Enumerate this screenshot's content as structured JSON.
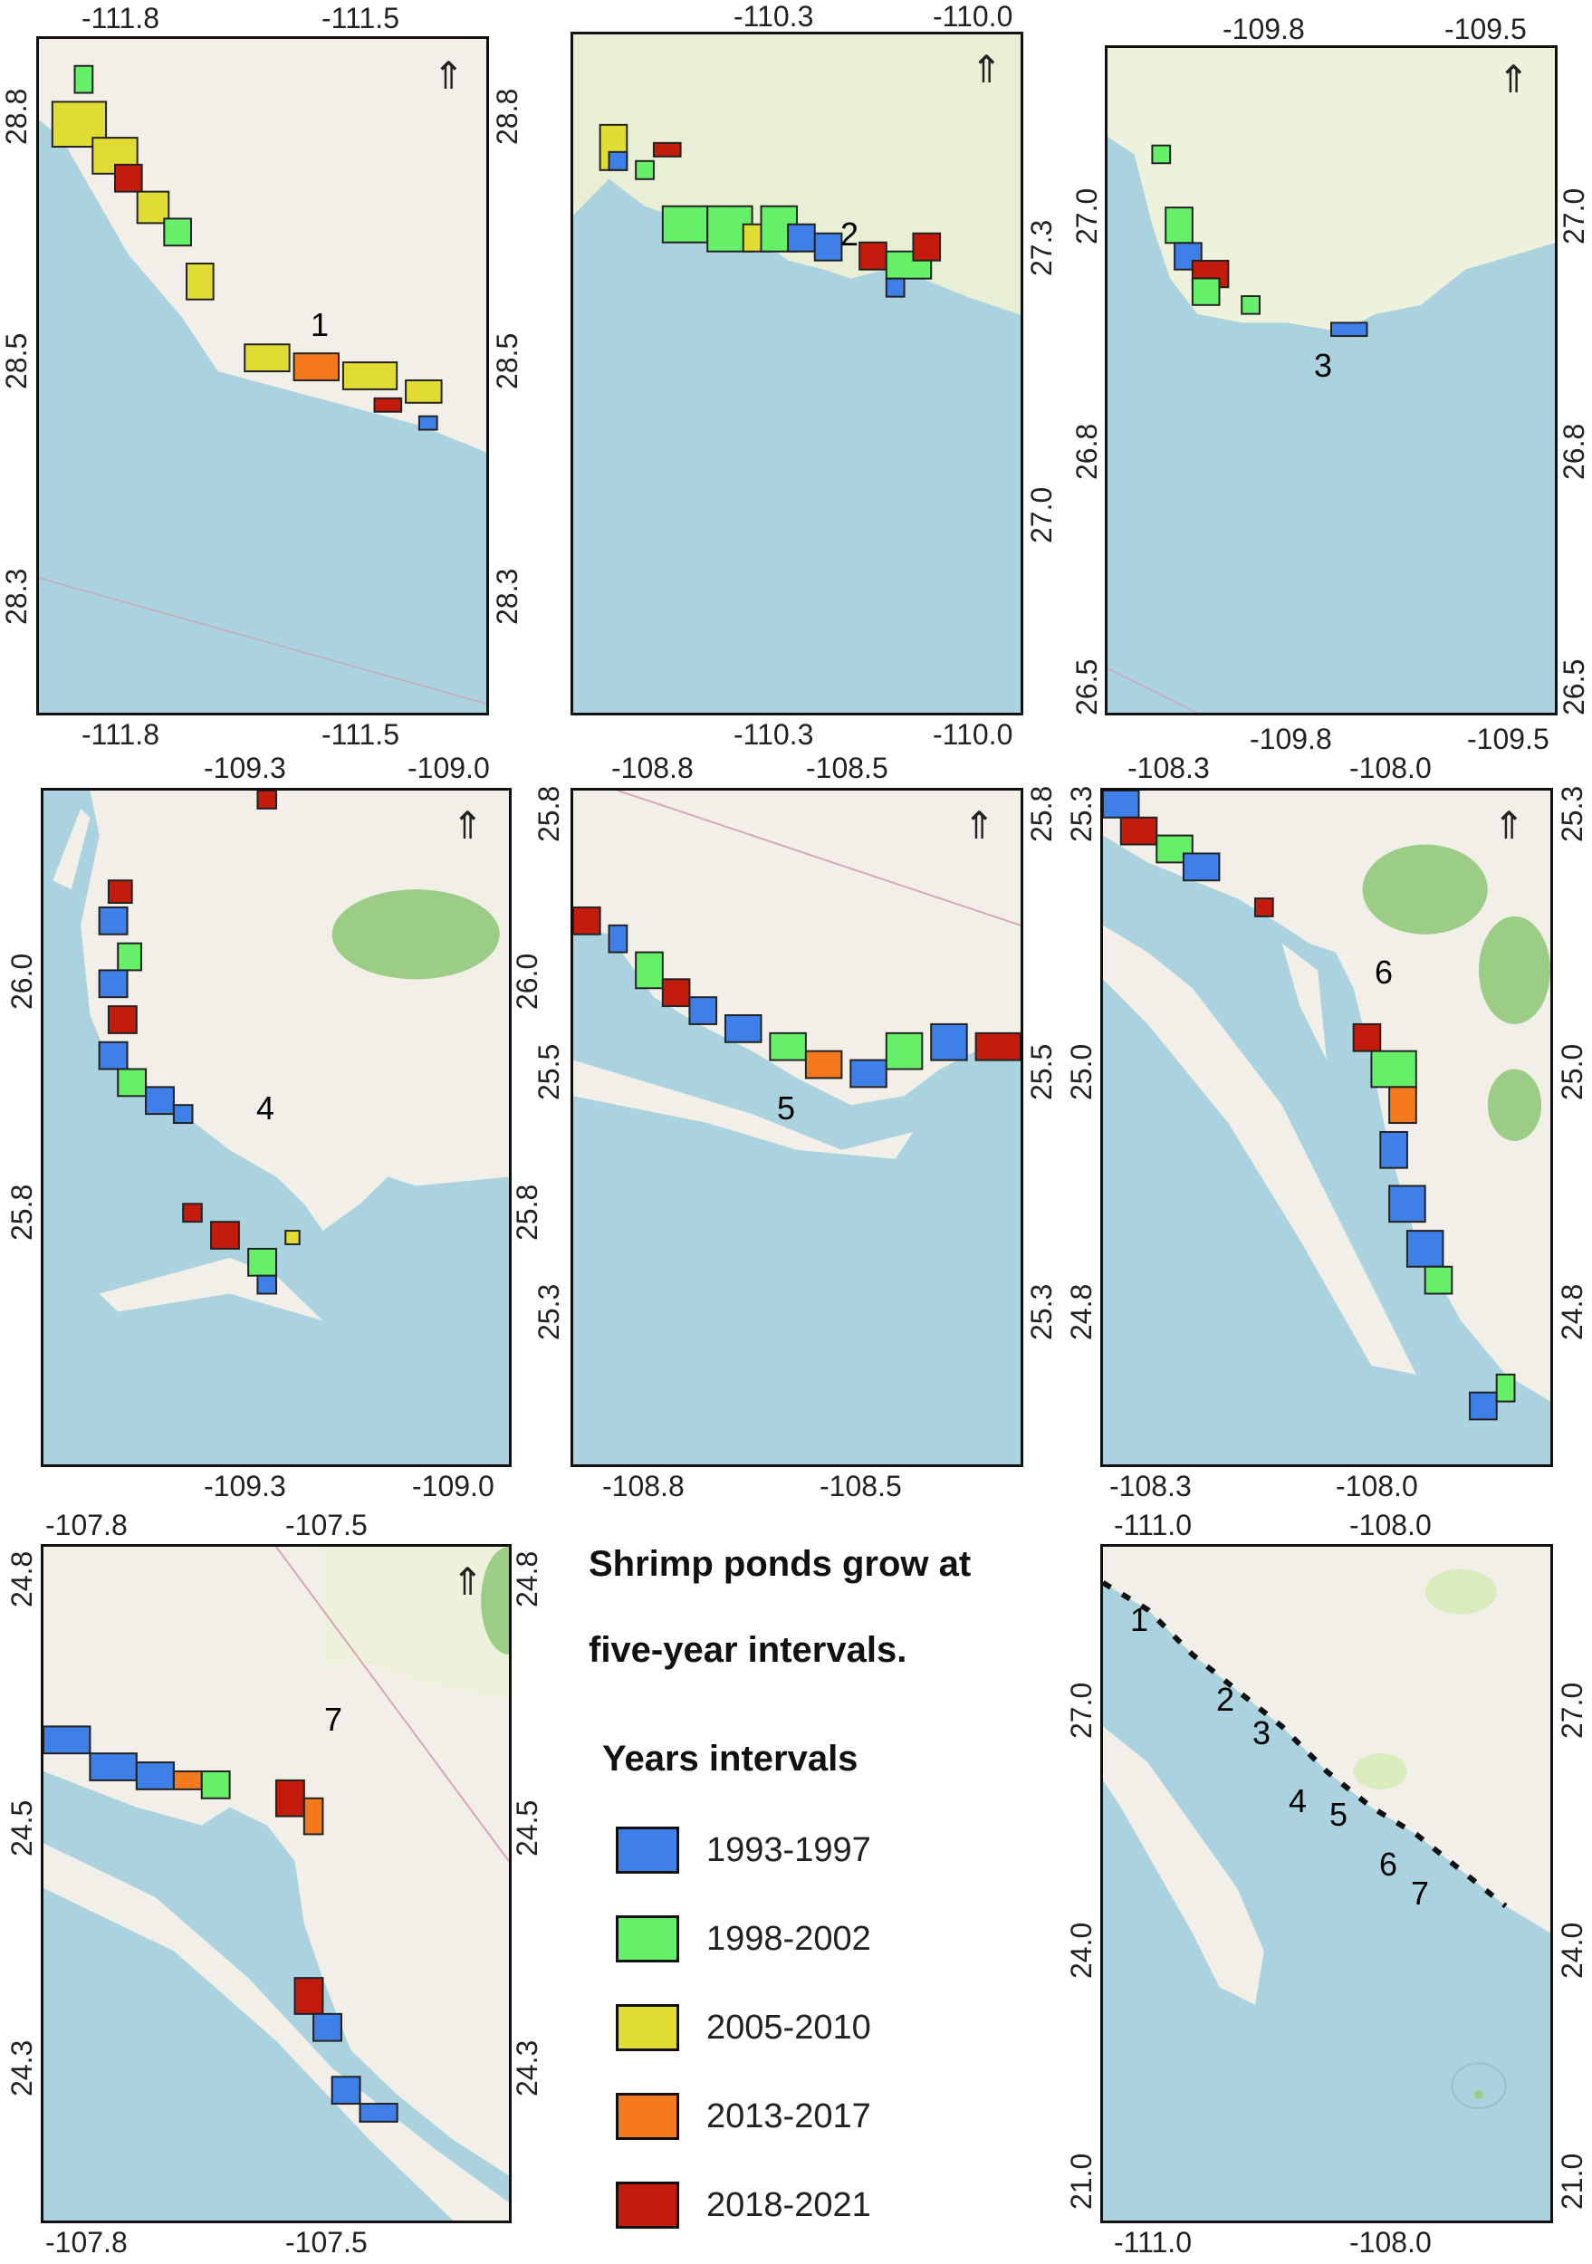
{
  "legend": {
    "title_line1": "Shrimp ponds grow at",
    "title_line2": "five-year intervals.",
    "intervals_title": "Years intervals",
    "items": [
      {
        "label": "1993-1997",
        "color": "#3f7fe8"
      },
      {
        "label": "1998-2002",
        "color": "#66f06a"
      },
      {
        "label": "2005-2010",
        "color": "#e1dc33"
      },
      {
        "label": "2013-2017",
        "color": "#f57a1e"
      },
      {
        "label": "2018-2021",
        "color": "#c31b0c"
      }
    ]
  },
  "panels": [
    {
      "id": "1",
      "label": "1",
      "x_top": [
        "-111.8",
        "-111.5"
      ],
      "x_bottom": [
        "-111.8",
        "-111.5"
      ],
      "y_left": [
        "28.8",
        "28.5",
        "28.3"
      ],
      "y_right": [
        "28.8",
        "28.5",
        "28.3"
      ],
      "north_arrow": true
    },
    {
      "id": "2",
      "label": "2",
      "x_top": [
        "-110.3",
        "-110.0"
      ],
      "x_bottom": [
        "-110.3",
        "-110.0"
      ],
      "y_left": [],
      "y_right": [
        "27.3",
        "27.0"
      ],
      "north_arrow": true
    },
    {
      "id": "3",
      "label": "3",
      "x_top": [
        "-109.8",
        "-109.5"
      ],
      "x_bottom": [
        "-109.8",
        "-109.5"
      ],
      "y_left": [
        "27.0",
        "26.8",
        "26.5"
      ],
      "y_right": [
        "27.0",
        "26.8",
        "26.5"
      ],
      "north_arrow": true
    },
    {
      "id": "4",
      "label": "4",
      "x_top": [
        "-109.3",
        "-109.0"
      ],
      "x_bottom": [
        "-109.3",
        "-109.0"
      ],
      "y_left": [
        "26.0",
        "25.8"
      ],
      "y_right": [
        "26.0",
        "25.8"
      ],
      "north_arrow": true
    },
    {
      "id": "5",
      "label": "5",
      "x_top": [
        "-108.8",
        "-108.5"
      ],
      "x_bottom": [
        "-108.8",
        "-108.5"
      ],
      "y_left": [
        "25.8",
        "25.5",
        "25.3"
      ],
      "y_right": [
        "25.8",
        "25.5",
        "25.3"
      ],
      "north_arrow": true
    },
    {
      "id": "6",
      "label": "6",
      "x_top": [
        "-108.3",
        "-108.0"
      ],
      "x_bottom": [
        "-108.3",
        "-108.0"
      ],
      "y_left": [
        "25.3",
        "25.0",
        "24.8"
      ],
      "y_right": [
        "25.3",
        "25.0",
        "24.8"
      ],
      "north_arrow": true
    },
    {
      "id": "7",
      "label": "7",
      "x_top": [
        "-107.8",
        "-107.5"
      ],
      "x_bottom": [
        "-107.8",
        "-107.5"
      ],
      "y_left": [
        "24.8",
        "24.5",
        "24.3"
      ],
      "y_right": [
        "24.8",
        "24.5",
        "24.3"
      ],
      "north_arrow": true
    },
    {
      "id": "overview",
      "labels": [
        "1",
        "2",
        "3",
        "4",
        "5",
        "6",
        "7"
      ],
      "x_top": [
        "-111.0",
        "-108.0"
      ],
      "x_bottom": [
        "-111.0",
        "-108.0"
      ],
      "y_left": [
        "27.0",
        "24.0",
        "21.0"
      ],
      "y_right": [
        "27.0",
        "24.0",
        "21.0"
      ],
      "north_arrow": false
    }
  ],
  "colors": {
    "land": "#f2efe8",
    "sea": "#aad3df",
    "veg": "#d9ecbd",
    "forest": "#9ccd87"
  }
}
